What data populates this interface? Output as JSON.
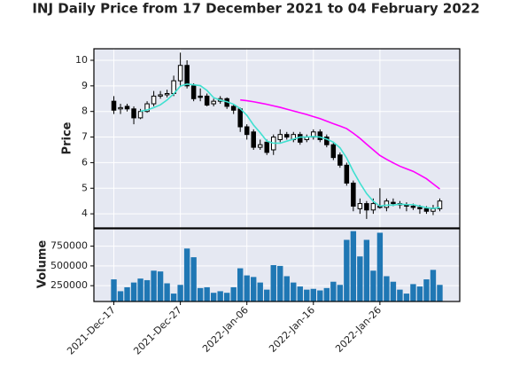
{
  "chart_data": [
    {
      "type": "candlestick",
      "title": "INJ Daily Price from 17 December 2021 to 04 February 2022",
      "ylabel": "Price",
      "x": [
        "2021-12-17",
        "2021-12-18",
        "2021-12-19",
        "2021-12-20",
        "2021-12-21",
        "2021-12-22",
        "2021-12-23",
        "2021-12-24",
        "2021-12-25",
        "2021-12-26",
        "2021-12-27",
        "2021-12-28",
        "2021-12-29",
        "2021-12-30",
        "2021-12-31",
        "2022-01-01",
        "2022-01-02",
        "2022-01-03",
        "2022-01-04",
        "2022-01-05",
        "2022-01-06",
        "2022-01-07",
        "2022-01-08",
        "2022-01-09",
        "2022-01-10",
        "2022-01-11",
        "2022-01-12",
        "2022-01-13",
        "2022-01-14",
        "2022-01-15",
        "2022-01-16",
        "2022-01-17",
        "2022-01-18",
        "2022-01-19",
        "2022-01-20",
        "2022-01-21",
        "2022-01-22",
        "2022-01-23",
        "2022-01-24",
        "2022-01-25",
        "2022-01-26",
        "2022-01-27",
        "2022-01-28",
        "2022-01-29",
        "2022-01-30",
        "2022-01-31",
        "2022-02-01",
        "2022-02-02",
        "2022-02-03",
        "2022-02-04"
      ],
      "open": [
        8.4,
        8.1,
        8.2,
        8.1,
        7.75,
        8.0,
        8.3,
        8.6,
        8.65,
        8.7,
        9.2,
        9.8,
        9.0,
        8.6,
        8.6,
        8.3,
        8.4,
        8.5,
        8.2,
        8.1,
        7.4,
        7.2,
        6.6,
        6.8,
        6.5,
        6.9,
        7.1,
        6.9,
        7.1,
        6.9,
        7.0,
        7.2,
        7.0,
        6.7,
        6.3,
        5.9,
        5.2,
        4.2,
        4.4,
        4.15,
        4.3,
        4.25,
        4.45,
        4.4,
        4.35,
        4.3,
        4.25,
        4.2,
        4.1,
        4.2
      ],
      "high": [
        8.6,
        8.3,
        8.3,
        8.2,
        8.1,
        8.4,
        8.8,
        8.8,
        8.85,
        9.4,
        10.3,
        10.0,
        9.1,
        8.9,
        8.7,
        8.5,
        8.6,
        8.55,
        8.3,
        8.15,
        7.5,
        7.3,
        6.9,
        6.9,
        7.1,
        7.3,
        7.2,
        7.2,
        7.2,
        7.1,
        7.3,
        7.3,
        7.1,
        6.8,
        6.4,
        6.0,
        5.3,
        4.6,
        4.5,
        4.6,
        5.0,
        4.6,
        4.6,
        4.5,
        4.45,
        4.4,
        4.35,
        4.3,
        4.35,
        4.6
      ],
      "low": [
        7.9,
        7.9,
        8.0,
        7.5,
        7.7,
        7.95,
        8.2,
        8.5,
        8.55,
        8.6,
        9.0,
        8.9,
        8.4,
        8.4,
        8.2,
        8.2,
        8.3,
        8.1,
        7.9,
        7.2,
        6.9,
        6.5,
        6.5,
        6.3,
        6.3,
        6.8,
        6.9,
        6.8,
        6.7,
        6.8,
        6.9,
        6.8,
        6.6,
        6.1,
        5.8,
        5.1,
        4.1,
        4.0,
        3.8,
        4.0,
        4.2,
        4.1,
        4.3,
        4.2,
        4.1,
        4.15,
        4.0,
        4.0,
        3.95,
        4.1
      ],
      "close": [
        8.05,
        8.15,
        8.1,
        7.75,
        8.0,
        8.3,
        8.6,
        8.65,
        8.7,
        9.2,
        9.8,
        9.0,
        8.5,
        8.55,
        8.25,
        8.4,
        8.5,
        8.2,
        8.05,
        7.4,
        7.1,
        6.6,
        6.7,
        6.4,
        7.0,
        7.1,
        7.0,
        7.1,
        6.8,
        7.0,
        7.2,
        6.9,
        6.7,
        6.2,
        5.9,
        5.2,
        4.3,
        4.4,
        4.15,
        4.4,
        4.25,
        4.5,
        4.4,
        4.35,
        4.3,
        4.25,
        4.2,
        4.1,
        4.2,
        4.5
      ],
      "up_color": "#ffffff",
      "down_color": "#000000",
      "edge_color": "#000000",
      "series": [
        {
          "type": "line",
          "color": "#40e0d0",
          "values": [
            null,
            null,
            null,
            null,
            8.01,
            8.06,
            8.15,
            8.26,
            8.45,
            8.69,
            8.99,
            9.07,
            9.04,
            9.01,
            8.82,
            8.54,
            8.44,
            8.38,
            8.28,
            8.11,
            7.85,
            7.47,
            7.17,
            6.84,
            6.76,
            6.76,
            6.84,
            6.92,
            7.0,
            7.0,
            7.02,
            7.0,
            6.92,
            6.8,
            6.58,
            6.18,
            5.66,
            5.2,
            4.79,
            4.49,
            4.3,
            4.34,
            4.34,
            4.38,
            4.36,
            4.36,
            4.3,
            4.24,
            4.21,
            4.25
          ]
        },
        {
          "type": "line",
          "color": "#ff00ff",
          "values": [
            null,
            null,
            null,
            null,
            null,
            null,
            null,
            null,
            null,
            null,
            null,
            null,
            null,
            null,
            null,
            null,
            null,
            null,
            null,
            8.45,
            8.42,
            8.38,
            8.33,
            8.28,
            8.22,
            8.16,
            8.09,
            8.02,
            7.95,
            7.88,
            7.8,
            7.72,
            7.62,
            7.52,
            7.43,
            7.33,
            7.15,
            6.95,
            6.72,
            6.5,
            6.28,
            6.13,
            5.99,
            5.86,
            5.76,
            5.66,
            5.52,
            5.37,
            5.17,
            4.97
          ]
        }
      ],
      "xlim": [
        "2021-12-14",
        "2022-02-07"
      ],
      "ylim": [
        3.45,
        10.45
      ],
      "yticks": [
        4,
        5,
        6,
        7,
        8,
        9,
        10
      ],
      "grid": true
    },
    {
      "type": "bar",
      "ylabel": "Volume",
      "color": "#1f77b4",
      "values": [
        330000,
        180000,
        230000,
        290000,
        340000,
        320000,
        440000,
        430000,
        280000,
        150000,
        260000,
        720000,
        610000,
        220000,
        230000,
        160000,
        180000,
        160000,
        230000,
        470000,
        380000,
        360000,
        290000,
        200000,
        510000,
        500000,
        370000,
        290000,
        240000,
        200000,
        210000,
        190000,
        220000,
        300000,
        260000,
        830000,
        940000,
        620000,
        830000,
        440000,
        920000,
        370000,
        300000,
        200000,
        150000,
        270000,
        240000,
        330000,
        450000,
        260000
      ],
      "ylim": [
        50000,
        970000
      ],
      "yticks": [
        250000,
        500000,
        750000
      ],
      "xticks": [
        {
          "value": "2021-12-17",
          "label": "2021-Dec-17"
        },
        {
          "value": "2021-12-27",
          "label": "2021-Dec-27"
        },
        {
          "value": "2022-01-06",
          "label": "2022-Jan-06"
        },
        {
          "value": "2022-01-16",
          "label": "2022-Jan-16"
        },
        {
          "value": "2022-01-26",
          "label": "2022-Jan-26"
        }
      ],
      "grid": true
    }
  ]
}
